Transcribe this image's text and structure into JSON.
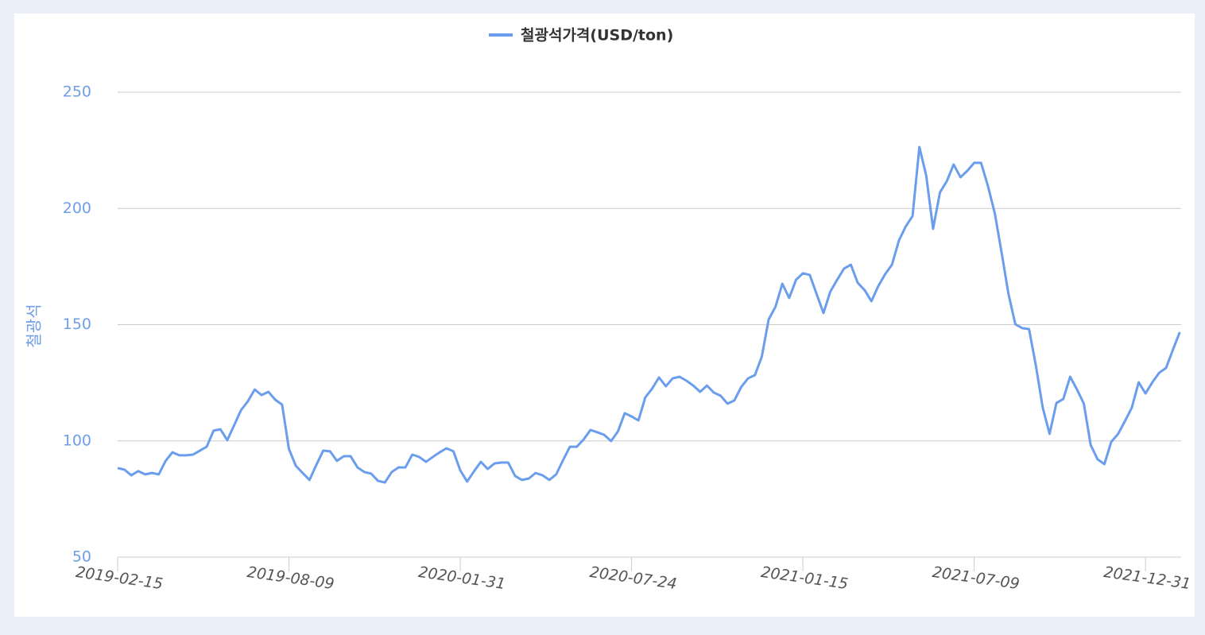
{
  "chart_data": {
    "type": "line",
    "y_label": "철광석",
    "categories": [
      "2019-02-15",
      null,
      null,
      null,
      null,
      null,
      null,
      null,
      null,
      null,
      null,
      null,
      null,
      null,
      null,
      null,
      null,
      null,
      null,
      null,
      null,
      null,
      null,
      null,
      null,
      "2019-08-09",
      null,
      null,
      null,
      null,
      null,
      null,
      null,
      null,
      null,
      null,
      null,
      null,
      null,
      null,
      null,
      null,
      null,
      null,
      null,
      null,
      null,
      null,
      null,
      null,
      "2020-01-31",
      null,
      null,
      null,
      null,
      null,
      null,
      null,
      null,
      null,
      null,
      null,
      null,
      null,
      null,
      null,
      null,
      null,
      null,
      null,
      null,
      null,
      null,
      null,
      null,
      "2020-07-24",
      null,
      null,
      null,
      null,
      null,
      null,
      null,
      null,
      null,
      null,
      null,
      null,
      null,
      null,
      null,
      null,
      null,
      null,
      null,
      null,
      null,
      null,
      null,
      null,
      "2021-01-15",
      null,
      null,
      null,
      null,
      null,
      null,
      null,
      null,
      null,
      null,
      null,
      null,
      null,
      null,
      null,
      null,
      null,
      null,
      null,
      null,
      null,
      null,
      null,
      null,
      "2021-07-09",
      null,
      null,
      null,
      null,
      null,
      null,
      null,
      null,
      null,
      null,
      null,
      null,
      null,
      null,
      null,
      null,
      null,
      null,
      null,
      null,
      null,
      null,
      null,
      null,
      "2021-12-31",
      null,
      null,
      null,
      null,
      null
    ],
    "series": [
      {
        "name": "철광석가격(USD/ton)",
        "color": "#6b9ded",
        "values": [
          88.3,
          87.6,
          85.2,
          87,
          85.6,
          86.2,
          85.6,
          91.4,
          95.1,
          93.8,
          93.8,
          94.1,
          95.8,
          97.5,
          104.4,
          105,
          100.3,
          106.7,
          113.2,
          117,
          122.1,
          119.7,
          121.1,
          117.7,
          115.6,
          96.5,
          89.3,
          86.2,
          83.2,
          89.7,
          95.8,
          95.5,
          91.4,
          93.4,
          93.4,
          88.6,
          86.6,
          85.9,
          82.8,
          82.1,
          86.6,
          88.6,
          88.6,
          94.1,
          93.1,
          91,
          93.1,
          95.1,
          96.8,
          95.5,
          87.3,
          82.5,
          86.9,
          91,
          87.9,
          90.3,
          90.7,
          90.7,
          84.9,
          83.2,
          83.8,
          86.2,
          85.2,
          83.2,
          85.6,
          91.7,
          97.5,
          97.5,
          100.6,
          104.7,
          103.7,
          102.6,
          99.9,
          104,
          111.9,
          110.5,
          108.8,
          118.7,
          122.5,
          127.3,
          123.5,
          126.9,
          127.6,
          125.9,
          123.8,
          121.1,
          123.8,
          120.8,
          119.4,
          116,
          117.4,
          123.2,
          126.9,
          128.3,
          136.2,
          152.2,
          157.7,
          167.6,
          161.5,
          169.3,
          172.1,
          171.4,
          163.2,
          155,
          164.2,
          169.3,
          174.1,
          175.8,
          168,
          164.9,
          160.1,
          166.6,
          171.7,
          175.8,
          186.1,
          192.2,
          196.7,
          226.4,
          214.1,
          191.2,
          206.9,
          211.7,
          218.9,
          213.4,
          216.2,
          219.6,
          219.6,
          209.7,
          198,
          181,
          163.2,
          150.2,
          148.5,
          148.1,
          132.4,
          114.3,
          103,
          116.3,
          118,
          127.6,
          122.1,
          116,
          98.2,
          92.1,
          90,
          99.6,
          103,
          108.5,
          114.3,
          125.2,
          120.4,
          125.2,
          129.3,
          131.4,
          139.2,
          146.8
        ]
      }
    ],
    "ylim": [
      50,
      250
    ],
    "yticks": [
      50,
      100,
      150,
      200,
      250
    ],
    "grid": true,
    "legend": "top"
  }
}
